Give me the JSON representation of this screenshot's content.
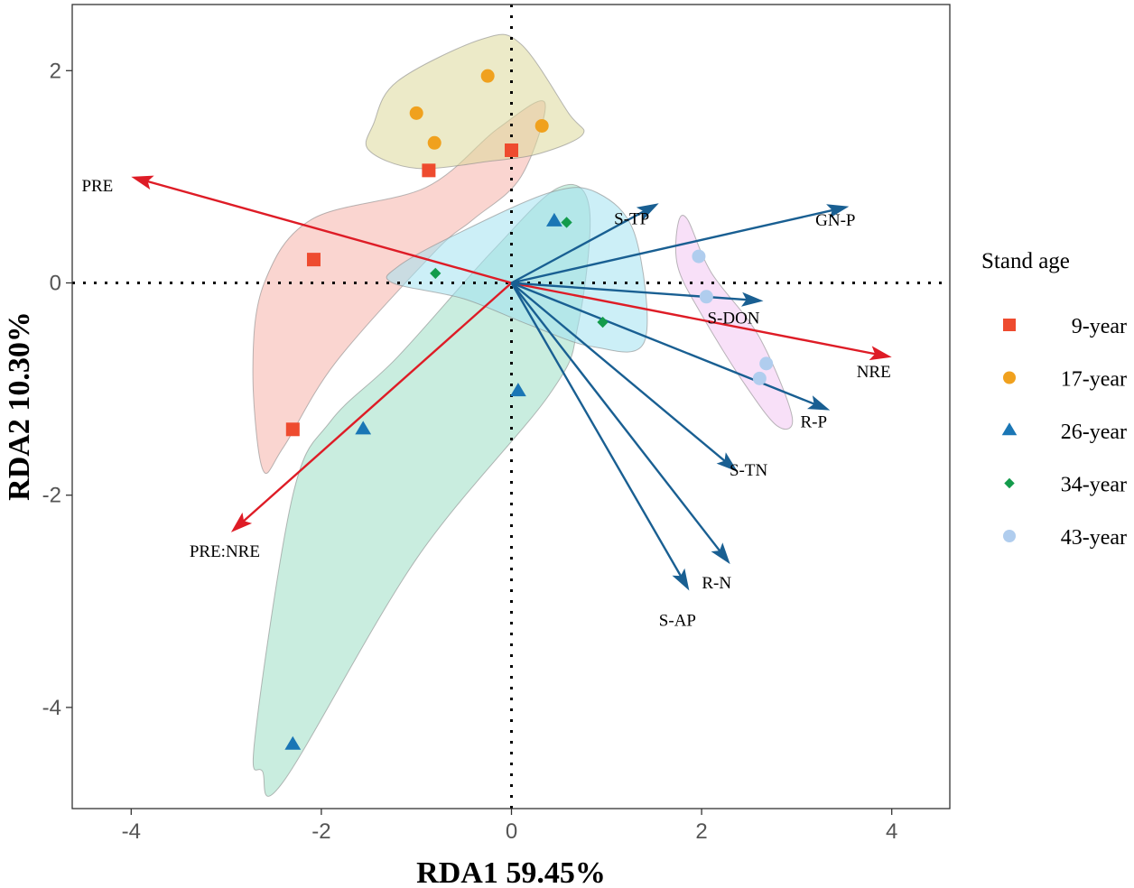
{
  "chart_data": {
    "type": "scatter",
    "subtype": "rda-biplot",
    "xlabel": "RDA1 59.45%",
    "ylabel": "RDA2 10.30%",
    "xlim": [
      -4.6,
      4.6
    ],
    "ylim": [
      -4.9,
      2.65
    ],
    "xticks": [
      -4,
      -2,
      0,
      2,
      4
    ],
    "yticks": [
      -4,
      -2,
      0,
      2
    ],
    "reference_lines": [
      "x = 0",
      "y = 0"
    ],
    "grid": false,
    "legend": {
      "title": "Stand age",
      "position": "right",
      "entries": [
        "9-year",
        "17-year",
        "26-year",
        "34-year",
        "43-year"
      ]
    },
    "series": [
      {
        "name": "9-year",
        "marker": "square",
        "color": "#EE4B2F",
        "hull_color": "#F6B3A9",
        "points": [
          [
            0.0,
            1.25
          ],
          [
            -0.87,
            1.06
          ],
          [
            -2.08,
            0.22
          ],
          [
            -2.3,
            -1.38
          ]
        ],
        "hull": [
          [
            -2.62,
            -1.75
          ],
          [
            -2.4,
            -1.55
          ],
          [
            -1.85,
            -0.75
          ],
          [
            -0.8,
            0.3
          ],
          [
            -0.4,
            0.6
          ],
          [
            0.1,
            1.0
          ],
          [
            0.35,
            1.7
          ],
          [
            -0.15,
            1.45
          ],
          [
            -0.9,
            0.9
          ],
          [
            -2.1,
            0.6
          ],
          [
            -2.6,
            0.0
          ],
          [
            -2.72,
            -0.8
          ]
        ]
      },
      {
        "name": "17-year",
        "marker": "circle",
        "color": "#F0A11E",
        "hull_color": "#DCD89A",
        "points": [
          [
            -0.25,
            1.95
          ],
          [
            -1.0,
            1.6
          ],
          [
            -0.81,
            1.32
          ],
          [
            0.32,
            1.48
          ]
        ],
        "hull": [
          [
            -1.45,
            1.5
          ],
          [
            -1.2,
            1.9
          ],
          [
            -0.3,
            2.3
          ],
          [
            0.1,
            2.25
          ],
          [
            0.6,
            1.6
          ],
          [
            0.75,
            1.4
          ],
          [
            0.3,
            1.22
          ],
          [
            -0.2,
            1.15
          ],
          [
            -1.0,
            1.08
          ],
          [
            -1.5,
            1.25
          ]
        ]
      },
      {
        "name": "26-year",
        "marker": "triangle",
        "color": "#1A76B5",
        "hull_color": "#9DDFC4",
        "points": [
          [
            0.45,
            0.58
          ],
          [
            -1.56,
            -1.38
          ],
          [
            0.07,
            -1.02
          ],
          [
            -2.3,
            -4.35
          ]
        ],
        "hull": [
          [
            -2.62,
            -4.6
          ],
          [
            -2.7,
            -4.3
          ],
          [
            -2.3,
            -2.0
          ],
          [
            -1.9,
            -1.3
          ],
          [
            -1.2,
            -0.7
          ],
          [
            -0.2,
            0.3
          ],
          [
            0.5,
            0.9
          ],
          [
            0.82,
            0.7
          ],
          [
            0.7,
            -0.4
          ],
          [
            0.4,
            -1.05
          ],
          [
            -1.0,
            -2.6
          ],
          [
            -2.4,
            -4.7
          ]
        ]
      },
      {
        "name": "34-year",
        "marker": "diamond",
        "color": "#139B4B",
        "hull_color": "#A2E1F1",
        "points": [
          [
            0.58,
            0.57
          ],
          [
            -0.8,
            0.09
          ],
          [
            0.96,
            -0.37
          ]
        ],
        "hull": [
          [
            -1.2,
            0.15
          ],
          [
            -0.6,
            0.45
          ],
          [
            0.4,
            0.85
          ],
          [
            0.9,
            0.85
          ],
          [
            1.3,
            0.45
          ],
          [
            1.4,
            -0.55
          ],
          [
            0.85,
            -0.6
          ],
          [
            0.2,
            -0.4
          ],
          [
            -0.5,
            -0.15
          ],
          [
            -1.25,
            0.0
          ]
        ]
      },
      {
        "name": "43-year",
        "marker": "circle",
        "color": "#B0CDEE",
        "hull_color": "#F3C6F3",
        "points": [
          [
            1.97,
            0.25
          ],
          [
            2.05,
            -0.13
          ],
          [
            2.68,
            -0.76
          ],
          [
            2.61,
            -0.9
          ]
        ],
        "hull": [
          [
            1.75,
            0.55
          ],
          [
            1.85,
            0.6
          ],
          [
            2.1,
            0.1
          ],
          [
            2.6,
            -0.5
          ],
          [
            2.95,
            -1.25
          ],
          [
            2.8,
            -1.35
          ],
          [
            2.45,
            -0.95
          ],
          [
            2.0,
            -0.3
          ],
          [
            1.75,
            0.15
          ]
        ]
      }
    ],
    "vectors": [
      {
        "label": "PRE",
        "x": -4.0,
        "y": 1.0,
        "color": "#DE1C26"
      },
      {
        "label": "NRE",
        "x": 4.0,
        "y": -0.7,
        "color": "#DE1C26"
      },
      {
        "label": "PRE:NRE",
        "x": -2.95,
        "y": -2.35,
        "color": "#DE1C26"
      },
      {
        "label": "S-TP",
        "x": 1.55,
        "y": 0.75,
        "color": "#195F92"
      },
      {
        "label": "GN-P",
        "x": 3.55,
        "y": 0.72,
        "color": "#195F92"
      },
      {
        "label": "S-DON",
        "x": 2.65,
        "y": -0.17,
        "color": "#195F92"
      },
      {
        "label": "R-P",
        "x": 3.35,
        "y": -1.2,
        "color": "#195F92"
      },
      {
        "label": "S-TN",
        "x": 2.38,
        "y": -1.78,
        "color": "#195F92"
      },
      {
        "label": "R-N",
        "x": 2.3,
        "y": -2.65,
        "color": "#195F92"
      },
      {
        "label": "S-AP",
        "x": 1.87,
        "y": -2.9,
        "color": "#195F92"
      }
    ]
  }
}
